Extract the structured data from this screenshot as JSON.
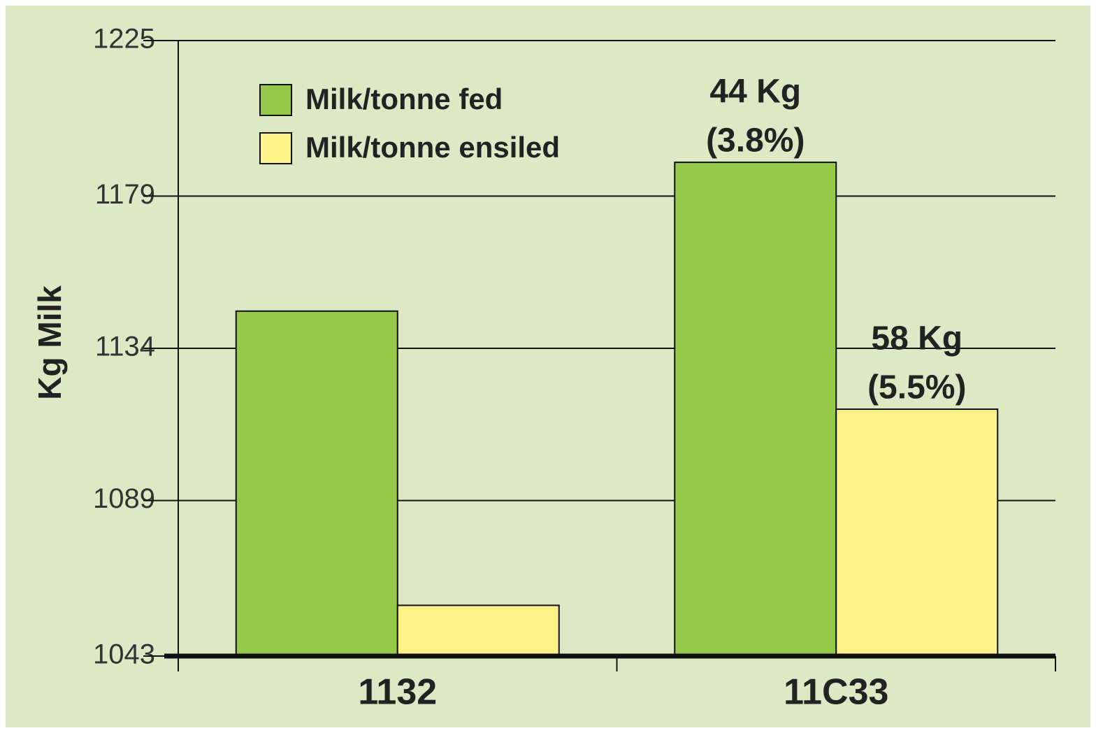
{
  "chart_data": {
    "type": "bar",
    "ylabel": "Kg Milk",
    "categories": [
      "1132",
      "11C33"
    ],
    "series": [
      {
        "name": "Milk/tonne fed",
        "color": "#96c84a",
        "values": [
          1145,
          1189
        ]
      },
      {
        "name": "Milk/tonne ensiled",
        "color": "#fdf288",
        "values": [
          1058,
          1116
        ]
      }
    ],
    "ylim": [
      1043,
      1225
    ],
    "yticks": [
      1043,
      1089,
      1134,
      1179,
      1225
    ],
    "grid": true,
    "legend": "upper left",
    "annotations": [
      {
        "lines": [
          "44 Kg",
          "(3.8%)"
        ]
      },
      {
        "lines": [
          "58 Kg",
          "(5.5%)"
        ]
      }
    ]
  }
}
